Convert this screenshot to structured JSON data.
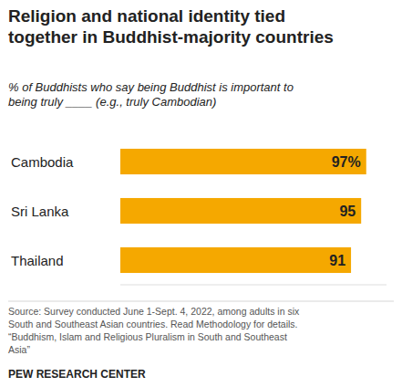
{
  "chart_data": {
    "type": "bar",
    "orientation": "horizontal",
    "title": "Religion and national identity tied\ntogether in Buddhist-majority countries",
    "subtitle": "% of Buddhists who say being Buddhist is important to\nbeing truly ____ (e.g., truly Cambodian)",
    "categories": [
      "Cambodia",
      "Sri Lanka",
      "Thailand"
    ],
    "values": [
      97,
      95,
      91
    ],
    "value_labels": [
      "97%",
      "95",
      "91"
    ],
    "data_labels": true,
    "color": "#F5A800",
    "xlim": [
      0,
      105
    ],
    "grid": false,
    "tick_labels": false,
    "annotations": [
      "Source: Survey conducted June 1-Sept. 4, 2022, among adults in six\nSouth and Southeast Asian countries. Read Methodology for details.\n“Buddhism, Islam and Religious Pluralism in South and Southeast\nAsia”",
      "PEW RESEARCH CENTER"
    ]
  }
}
